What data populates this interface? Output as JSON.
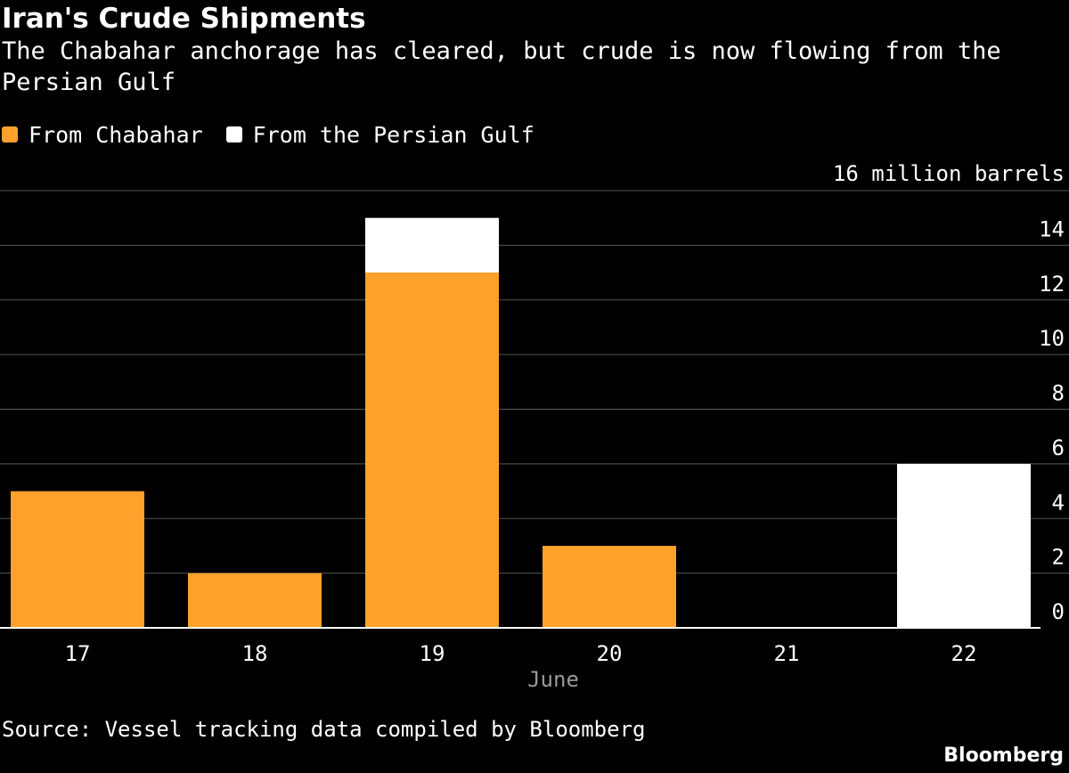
{
  "header": {
    "title": "Iran's Crude Shipments",
    "subtitle": "The Chabahar anchorage has cleared, but crude is now flowing from the Persian Gulf"
  },
  "footer": {
    "source": "Source: Vessel tracking data compiled by Bloomberg",
    "brand": "Bloomberg"
  },
  "chart_data": {
    "type": "bar",
    "stacked": true,
    "categories": [
      "17",
      "18",
      "19",
      "20",
      "21",
      "22"
    ],
    "xlabel": "June",
    "ylabel": "16 million barrels",
    "ylim": [
      0,
      16
    ],
    "yticks": [
      0,
      2,
      4,
      6,
      8,
      10,
      12,
      14
    ],
    "grid": true,
    "legend_position": "top-left",
    "series": [
      {
        "name": "From Chabahar",
        "color": "#ffa12b",
        "values": [
          5,
          2,
          13,
          3,
          0,
          0
        ]
      },
      {
        "name": "From the Persian Gulf",
        "color": "#ffffff",
        "values": [
          0,
          0,
          2,
          0,
          0,
          6
        ]
      }
    ],
    "colors": {
      "background": "#000000",
      "gridline": "#555555",
      "axis": "#ffffff",
      "muted_label": "#999999"
    }
  }
}
